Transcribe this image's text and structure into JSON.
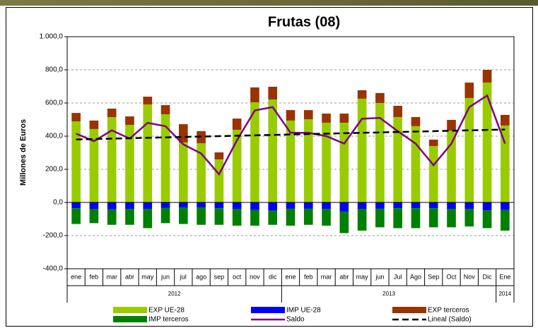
{
  "chart_data": {
    "type": "bar",
    "title": "Frutas (08)",
    "y_label": "Millones de Euros",
    "categories": [
      "ene",
      "feb",
      "mar",
      "abr",
      "may",
      "jun",
      "jul",
      "ago",
      "sep",
      "oct",
      "nov",
      "dic",
      "ene",
      "feb",
      "mar",
      "abr",
      "may",
      "jun",
      "Jul",
      "Ago",
      "Sep",
      "Oct",
      "Nov",
      "Dic",
      "Ene"
    ],
    "groups": [
      {
        "label": "2012",
        "count": 12
      },
      {
        "label": "2013",
        "count": 12
      },
      {
        "label": "2014",
        "count": 1
      }
    ],
    "ylim": [
      -400,
      1000
    ],
    "yticks": [
      {
        "value": -400,
        "label": "-400,0"
      },
      {
        "value": -200,
        "label": "-200,0"
      },
      {
        "value": 0,
        "label": "0,0"
      },
      {
        "value": 200,
        "label": "200,0"
      },
      {
        "value": 400,
        "label": "400,0"
      },
      {
        "value": 600,
        "label": "600,0"
      },
      {
        "value": 800,
        "label": "800,0"
      },
      {
        "value": 1000,
        "label": "1.000,0"
      }
    ],
    "grid": true,
    "series": [
      {
        "name": "EXP UE-28",
        "type": "bar",
        "color": "#99cc00",
        "values": [
          489,
          443,
          515,
          468,
          591,
          532,
          362,
          357,
          260,
          438,
          604,
          621,
          494,
          502,
          481,
          481,
          626,
          600,
          515,
          460,
          340,
          434,
          630,
          723,
          464
        ]
      },
      {
        "name": "IMP UE-28",
        "type": "bar",
        "color": "#0000ff",
        "values": [
          -35,
          -40,
          -42,
          -40,
          -40,
          -32,
          -30,
          -30,
          -35,
          -40,
          -45,
          -50,
          -38,
          -38,
          -40,
          -55,
          -40,
          -38,
          -35,
          -35,
          -35,
          -40,
          -40,
          -48,
          -45
        ]
      },
      {
        "name": "EXP terceros",
        "type": "bar",
        "color": "#993300",
        "values": [
          51,
          51,
          51,
          51,
          47,
          55,
          110,
          73,
          42,
          68,
          90,
          77,
          63,
          55,
          55,
          55,
          51,
          60,
          68,
          55,
          39,
          64,
          93,
          77,
          64
        ]
      },
      {
        "name": "IMP terceros",
        "type": "bar",
        "color": "#008000",
        "values": [
          -95,
          -85,
          -93,
          -95,
          -115,
          -93,
          -100,
          -105,
          -100,
          -100,
          -95,
          -85,
          -102,
          -97,
          -100,
          -130,
          -130,
          -112,
          -120,
          -120,
          -115,
          -110,
          -105,
          -107,
          -125
        ]
      },
      {
        "name": "Saldo",
        "type": "line",
        "color": "#800080",
        "values": [
          415,
          370,
          435,
          385,
          480,
          460,
          350,
          295,
          170,
          375,
          555,
          575,
          420,
          420,
          400,
          355,
          505,
          510,
          430,
          355,
          225,
          355,
          575,
          645,
          355
        ]
      },
      {
        "name": "Lineal (Saldo)",
        "type": "line",
        "dash": true,
        "color": "#000000",
        "values": [
          380,
          382.5,
          385,
          387.5,
          390,
          392.5,
          395,
          397.5,
          400,
          402.5,
          405,
          407.5,
          410,
          412.5,
          415,
          417.5,
          420,
          422.5,
          425,
          427.5,
          430,
          432.5,
          435,
          437.5,
          440
        ]
      }
    ]
  }
}
